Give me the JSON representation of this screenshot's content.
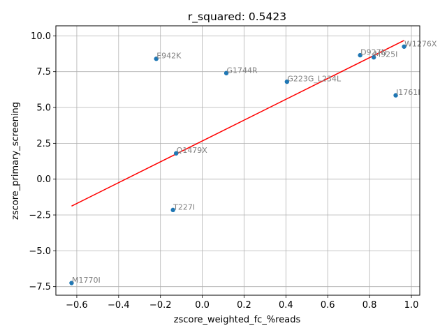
{
  "chart_data": {
    "type": "scatter",
    "title": "r_squared: 0.5423",
    "xlabel": "zscore_weighted_fc_%reads",
    "ylabel": "zscore_primary_screening",
    "xlim": [
      -0.7,
      1.04
    ],
    "ylim": [
      -8.1,
      10.7
    ],
    "xticks": [
      -0.6,
      -0.4,
      -0.2,
      0.0,
      0.2,
      0.4,
      0.6,
      0.8,
      1.0
    ],
    "xtick_labels": [
      "−0.6",
      "−0.4",
      "−0.2",
      "0.0",
      "0.2",
      "0.4",
      "0.6",
      "0.8",
      "1.0"
    ],
    "yticks": [
      -7.5,
      -5.0,
      -2.5,
      0.0,
      2.5,
      5.0,
      7.5,
      10.0
    ],
    "ytick_labels": [
      "−7.5",
      "−5.0",
      "−2.5",
      "0.0",
      "2.5",
      "5.0",
      "7.5",
      "10.0"
    ],
    "grid": true,
    "point_color": "#1f77b4",
    "fit_color": "#ff0000",
    "label_color": "#808080",
    "points": [
      {
        "label": "E942K",
        "x": -0.22,
        "y": 8.4
      },
      {
        "label": "G1744R",
        "x": 0.115,
        "y": 7.4
      },
      {
        "label": "G223G_L234L",
        "x": 0.405,
        "y": 6.8
      },
      {
        "label": "D927N",
        "x": 0.755,
        "y": 8.65
      },
      {
        "label": "M925I",
        "x": 0.82,
        "y": 8.5
      },
      {
        "label": "W1276X",
        "x": 0.965,
        "y": 9.25
      },
      {
        "label": "I1761I",
        "x": 0.925,
        "y": 5.85
      },
      {
        "label": "Q1479X",
        "x": -0.125,
        "y": 1.8
      },
      {
        "label": "T227I",
        "x": -0.14,
        "y": -2.15
      },
      {
        "label": "M1770I",
        "x": -0.625,
        "y": -7.25
      }
    ],
    "fit_line": {
      "x": [
        -0.625,
        0.965
      ],
      "y": [
        -1.88,
        9.68
      ]
    }
  }
}
